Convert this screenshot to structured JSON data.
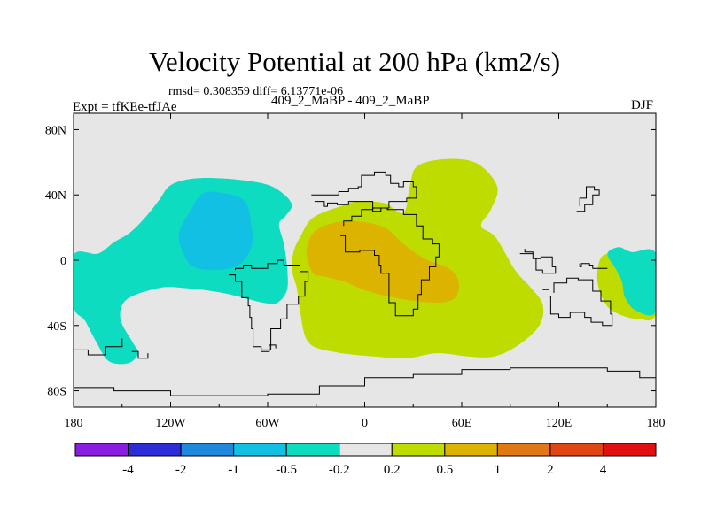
{
  "title": "Velocity Potential at 200 hPa (km2/s)",
  "stats": "rmsd= 0.308359 diff= 6.13771e-06",
  "left_label": "Expt = tfKEe-tfJAe",
  "center_label": "409_2_MaBP - 409_2_MaBP",
  "right_label": "DJF",
  "chart_data": {
    "type": "contour-map",
    "projection": "cylindrical-equidistant",
    "xlim": [
      -180,
      180
    ],
    "ylim": [
      -90,
      90
    ],
    "x_ticks": [
      -180,
      -120,
      -60,
      0,
      60,
      120,
      180
    ],
    "x_tick_labels": [
      "180",
      "120W",
      "60W",
      "0",
      "60E",
      "120E",
      "180"
    ],
    "y_ticks": [
      80,
      40,
      0,
      -40,
      -80
    ],
    "y_tick_labels": [
      "80N",
      "40N",
      "0",
      "40S",
      "80S"
    ],
    "background_color": "#e6e6e6",
    "colorbar": {
      "levels": [
        "-4",
        "-2",
        "-1",
        "-0.5",
        "-0.2",
        "0.2",
        "0.5",
        "1",
        "2",
        "4"
      ],
      "colors": [
        "#8a1ee0",
        "#2c2cd8",
        "#1e88dc",
        "#12c0e4",
        "#0edcc0",
        "#e6e6e6",
        "#bedc00",
        "#dcb400",
        "#e07814",
        "#e04614",
        "#e01010"
      ]
    },
    "regions": [
      {
        "level": "-0.5 to -0.2",
        "color": "#0edcc0",
        "center": [
          -115,
          20
        ],
        "outline": [
          [
            -180,
            3
          ],
          [
            -165,
            4
          ],
          [
            -155,
            11
          ],
          [
            -145,
            17
          ],
          [
            -135,
            27
          ],
          [
            -127,
            37
          ],
          [
            -120,
            46
          ],
          [
            -106,
            50
          ],
          [
            -86,
            50
          ],
          [
            -63,
            47
          ],
          [
            -52,
            42
          ],
          [
            -45,
            34
          ],
          [
            -49,
            27
          ],
          [
            -53,
            22
          ],
          [
            -50,
            10
          ],
          [
            -48,
            -4
          ],
          [
            -48,
            -18
          ],
          [
            -54,
            -26
          ],
          [
            -63,
            -26
          ],
          [
            -88,
            -20
          ],
          [
            -112,
            -17
          ],
          [
            -127,
            -17
          ],
          [
            -147,
            -24
          ],
          [
            -151,
            -36
          ],
          [
            -143,
            -51
          ],
          [
            -140,
            -57
          ],
          [
            -146,
            -63
          ],
          [
            -158,
            -62
          ],
          [
            -166,
            -50
          ],
          [
            -173,
            -37
          ],
          [
            -180,
            -28
          ]
        ]
      },
      {
        "level": "-1 to -0.5",
        "color": "#12c0e4",
        "center": [
          -98,
          22
        ],
        "outline": [
          [
            -115,
            16
          ],
          [
            -108,
            30
          ],
          [
            -100,
            41
          ],
          [
            -87,
            41
          ],
          [
            -74,
            36
          ],
          [
            -70,
            21
          ],
          [
            -70,
            8
          ],
          [
            -78,
            -3
          ],
          [
            -93,
            -6
          ],
          [
            -106,
            -4
          ],
          [
            -112,
            4
          ]
        ]
      },
      {
        "level": "0.2 to 0.5",
        "color": "#bedc00",
        "center": [
          20,
          10
        ],
        "outline": [
          [
            -40,
            14
          ],
          [
            -32,
            26
          ],
          [
            -15,
            33
          ],
          [
            -4,
            36
          ],
          [
            12,
            35
          ],
          [
            24,
            29
          ],
          [
            28,
            46
          ],
          [
            33,
            58
          ],
          [
            52,
            62
          ],
          [
            70,
            59
          ],
          [
            82,
            45
          ],
          [
            78,
            31
          ],
          [
            72,
            21
          ],
          [
            81,
            14
          ],
          [
            93,
            -6
          ],
          [
            102,
            -16
          ],
          [
            110,
            -27
          ],
          [
            108,
            -40
          ],
          [
            95,
            -52
          ],
          [
            80,
            -59
          ],
          [
            64,
            -59
          ],
          [
            45,
            -57
          ],
          [
            26,
            -60
          ],
          [
            6,
            -59
          ],
          [
            -20,
            -56
          ],
          [
            -35,
            -50
          ],
          [
            -40,
            -31
          ],
          [
            -42,
            -17
          ],
          [
            -45,
            -6
          ],
          [
            -44,
            5
          ]
        ]
      },
      {
        "level": "0.2 to 0.5",
        "color": "#bedc00",
        "center": [
          155,
          -10
        ],
        "outline": [
          [
            180,
            3
          ],
          [
            165,
            4
          ],
          [
            150,
            4
          ],
          [
            145,
            -1
          ],
          [
            144,
            -14
          ],
          [
            149,
            -27
          ],
          [
            157,
            -33
          ],
          [
            169,
            -36
          ],
          [
            180,
            -33
          ]
        ]
      },
      {
        "level": "0.5 to 1",
        "color": "#dcb400",
        "center": [
          0,
          3
        ],
        "outline": [
          [
            -36,
            4
          ],
          [
            -33,
            15
          ],
          [
            -25,
            21
          ],
          [
            -12,
            24
          ],
          [
            2,
            23
          ],
          [
            14,
            19
          ],
          [
            24,
            10
          ],
          [
            37,
            1
          ],
          [
            52,
            -5
          ],
          [
            58,
            -13
          ],
          [
            56,
            -23
          ],
          [
            45,
            -26
          ],
          [
            24,
            -24
          ],
          [
            2,
            -19
          ],
          [
            -13,
            -13
          ],
          [
            -25,
            -10
          ],
          [
            -32,
            -8
          ]
        ]
      },
      {
        "level": "-0.5 to -0.2",
        "color": "#0edcc0",
        "center": [
          163,
          0
        ],
        "outline": [
          [
            150,
            4
          ],
          [
            157,
            8
          ],
          [
            165,
            5
          ],
          [
            180,
            4
          ],
          [
            180,
            -31
          ],
          [
            168,
            -31
          ],
          [
            161,
            -23
          ],
          [
            159,
            -13
          ],
          [
            155,
            -5
          ]
        ]
      }
    ],
    "land_outlines": [
      [
        [
          -33,
          40
        ],
        [
          -16,
          42
        ],
        [
          -10,
          44
        ],
        [
          -4,
          45
        ],
        [
          -2,
          52
        ],
        [
          6,
          54
        ],
        [
          13,
          52
        ],
        [
          16,
          47
        ],
        [
          21,
          45
        ],
        [
          24,
          48
        ],
        [
          30,
          45
        ],
        [
          32,
          38
        ],
        [
          26,
          36
        ],
        [
          20,
          36
        ],
        [
          15,
          32
        ],
        [
          10,
          30
        ],
        [
          5,
          36
        ],
        [
          -3,
          36
        ],
        [
          -10,
          34
        ],
        [
          -17,
          35
        ],
        [
          -23,
          33
        ],
        [
          -25,
          36
        ],
        [
          -31,
          36
        ]
      ],
      [
        [
          -15,
          15
        ],
        [
          -12,
          5
        ],
        [
          -3,
          6
        ],
        [
          6,
          3
        ],
        [
          9,
          -3
        ],
        [
          10,
          -8
        ],
        [
          15,
          -17
        ],
        [
          15,
          -26
        ],
        [
          19,
          -34
        ],
        [
          26,
          -34
        ],
        [
          30,
          -30
        ],
        [
          33,
          -21
        ],
        [
          35,
          -12
        ],
        [
          40,
          -4
        ],
        [
          44,
          2
        ],
        [
          46,
          10
        ],
        [
          42,
          13
        ],
        [
          36,
          21
        ],
        [
          32,
          28
        ],
        [
          24,
          31
        ],
        [
          14,
          32
        ],
        [
          5,
          31
        ],
        [
          -2,
          27
        ],
        [
          -8,
          24
        ],
        [
          -13,
          21
        ]
      ],
      [
        [
          -84,
          -9
        ],
        [
          -80,
          -13
        ],
        [
          -76,
          -23
        ],
        [
          -72,
          -28
        ],
        [
          -71,
          -35
        ],
        [
          -70,
          -42
        ],
        [
          -69,
          -53
        ],
        [
          -64,
          -55
        ],
        [
          -58,
          -42
        ],
        [
          -52,
          -36
        ],
        [
          -48,
          -27
        ],
        [
          -41,
          -22
        ],
        [
          -37,
          -13
        ],
        [
          -35,
          -7
        ],
        [
          -40,
          -3
        ],
        [
          -50,
          0
        ],
        [
          -54,
          -2
        ],
        [
          -60,
          -5
        ],
        [
          -70,
          -3
        ],
        [
          -75,
          -5
        ],
        [
          -80,
          -6
        ]
      ],
      [
        [
          110,
          -18
        ],
        [
          114,
          -22
        ],
        [
          115,
          -33
        ],
        [
          120,
          -35
        ],
        [
          127,
          -32
        ],
        [
          136,
          -35
        ],
        [
          140,
          -38
        ],
        [
          147,
          -40
        ],
        [
          153,
          -33
        ],
        [
          152,
          -25
        ],
        [
          146,
          -19
        ],
        [
          141,
          -12
        ],
        [
          136,
          -12
        ],
        [
          132,
          -11
        ],
        [
          125,
          -14
        ],
        [
          117,
          -20
        ]
      ],
      [
        [
          -180,
          -78
        ],
        [
          -155,
          -80
        ],
        [
          -120,
          -83
        ],
        [
          -60,
          -82
        ],
        [
          -28,
          -77
        ],
        [
          0,
          -72
        ],
        [
          30,
          -70
        ],
        [
          60,
          -67
        ],
        [
          90,
          -66
        ],
        [
          120,
          -66
        ],
        [
          150,
          -68
        ],
        [
          170,
          -72
        ],
        [
          180,
          -77
        ]
      ],
      [
        [
          96,
          4
        ],
        [
          104,
          1
        ],
        [
          106,
          -6
        ],
        [
          110,
          -8
        ],
        [
          116,
          -8
        ],
        [
          118,
          -4
        ],
        [
          116,
          2
        ],
        [
          109,
          1
        ],
        [
          104,
          5
        ],
        [
          99,
          7
        ]
      ],
      [
        [
          131,
          30
        ],
        [
          136,
          34
        ],
        [
          141,
          40
        ],
        [
          145,
          43
        ],
        [
          142,
          45
        ],
        [
          137,
          38
        ],
        [
          133,
          33
        ]
      ],
      [
        [
          150,
          -5
        ],
        [
          145,
          -5
        ],
        [
          141,
          -3
        ],
        [
          139,
          -2
        ],
        [
          134,
          -4
        ],
        [
          133,
          -2
        ]
      ],
      [
        [
          -180,
          -55
        ],
        [
          -171,
          -58
        ],
        [
          -160,
          -53
        ],
        [
          -150,
          -48
        ]
      ],
      [
        [
          -144,
          -56
        ],
        [
          -140,
          -60
        ],
        [
          -134,
          -57
        ]
      ],
      [
        [
          -64,
          -56
        ],
        [
          -59,
          -52
        ],
        [
          -55,
          -54
        ]
      ]
    ]
  }
}
